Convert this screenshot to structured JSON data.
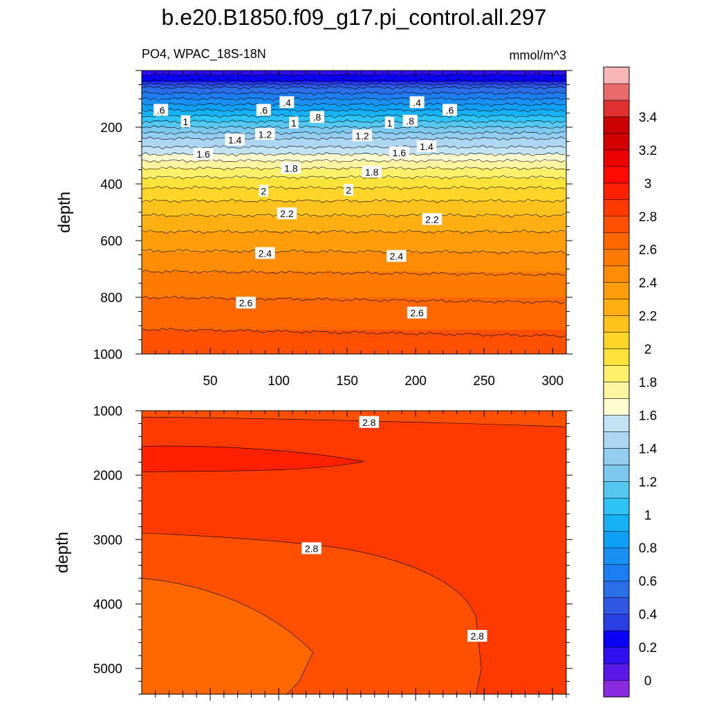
{
  "chart_data": {
    "type": "contour",
    "title": "b.e20.B1850.f09_g17.pi_control.all.297",
    "left_subtitle": "PO4, WPAC_18S-18N",
    "right_subtitle": "mmol/m^3",
    "xlabel": "",
    "ylabel": "depth",
    "colorbar": {
      "levels": [
        0,
        0.1,
        0.2,
        0.3,
        0.4,
        0.5,
        0.6,
        0.7,
        0.8,
        0.9,
        1.0,
        1.1,
        1.2,
        1.3,
        1.4,
        1.5,
        1.6,
        1.7,
        1.8,
        1.9,
        2.0,
        2.1,
        2.2,
        2.3,
        2.4,
        2.5,
        2.6,
        2.7,
        2.8,
        2.9,
        3.0,
        3.1,
        3.2,
        3.3,
        3.4,
        3.5
      ],
      "tick_labels": [
        "0",
        "0.2",
        "0.4",
        "0.6",
        "0.8",
        "1",
        "1.2",
        "1.4",
        "1.6",
        "1.8",
        "2",
        "2.2",
        "2.4",
        "2.6",
        "2.8",
        "3",
        "3.2",
        "3.4"
      ],
      "colors": [
        "#8a2be2",
        "#5a19e8",
        "#3010f0",
        "#0a00f5",
        "#2b3ee3",
        "#2f57e4",
        "#2a6ee8",
        "#1c7ef0",
        "#1a90f5",
        "#0ea0f6",
        "#14b2f4",
        "#2dc3f5",
        "#55c8f2",
        "#7dc8ef",
        "#95cdf0",
        "#acd6f1",
        "#c2e3f3",
        "#fffdd0",
        "#fff5a0",
        "#fff06b",
        "#ffe33a",
        "#ffd52a",
        "#ffc21c",
        "#ffaf12",
        "#ff9d0a",
        "#ff8c04",
        "#ff7a00",
        "#ff6800",
        "#ff5000",
        "#ff3a00",
        "#ff2000",
        "#ff0a00",
        "#ee0000",
        "#d40000",
        "#cc0000",
        "#e03030",
        "#e86a6a",
        "#f9b6b6"
      ]
    },
    "panels": [
      {
        "name": "upper",
        "xlim": [
          0,
          310
        ],
        "ylim": [
          1000,
          0
        ],
        "xticks": [
          50,
          100,
          150,
          200,
          250,
          300
        ],
        "yticks": [
          200,
          400,
          600,
          800,
          1000
        ],
        "profile": {
          "depth": [
            0,
            30,
            60,
            90,
            120,
            150,
            180,
            210,
            240,
            270,
            300,
            330,
            360,
            400,
            450,
            500,
            550,
            600,
            650,
            700,
            750,
            800,
            850,
            900,
            950,
            1000
          ],
          "po4": [
            0.15,
            0.25,
            0.5,
            0.65,
            0.8,
            0.95,
            1.1,
            1.25,
            1.4,
            1.5,
            1.62,
            1.75,
            1.85,
            1.97,
            2.08,
            2.18,
            2.27,
            2.35,
            2.42,
            2.49,
            2.55,
            2.6,
            2.65,
            2.69,
            2.73,
            2.76
          ]
        },
        "contour_labels": [
          {
            "text": ".6",
            "x": 14,
            "d": 140
          },
          {
            "text": ".6",
            "x": 89,
            "d": 140
          },
          {
            "text": ".4",
            "x": 106,
            "d": 113
          },
          {
            "text": ".4",
            "x": 201,
            "d": 113
          },
          {
            "text": ".6",
            "x": 225,
            "d": 140
          },
          {
            "text": "1",
            "x": 32,
            "d": 180
          },
          {
            "text": "1.4",
            "x": 68,
            "d": 245
          },
          {
            "text": "1.2",
            "x": 90,
            "d": 225
          },
          {
            "text": "1",
            "x": 111,
            "d": 185
          },
          {
            "text": ".8",
            "x": 128,
            "d": 165
          },
          {
            "text": "1.2",
            "x": 161,
            "d": 230
          },
          {
            "text": "1",
            "x": 181,
            "d": 185
          },
          {
            "text": ".8",
            "x": 196,
            "d": 178
          },
          {
            "text": "1.4",
            "x": 208,
            "d": 268
          },
          {
            "text": "1.6",
            "x": 45,
            "d": 295
          },
          {
            "text": "1.6",
            "x": 188,
            "d": 290
          },
          {
            "text": "1.8",
            "x": 109,
            "d": 345
          },
          {
            "text": "1.8",
            "x": 168,
            "d": 358
          },
          {
            "text": "2",
            "x": 89,
            "d": 425
          },
          {
            "text": "2",
            "x": 151,
            "d": 422
          },
          {
            "text": "2.2",
            "x": 106,
            "d": 505
          },
          {
            "text": "2.2",
            "x": 212,
            "d": 525
          },
          {
            "text": "2.4",
            "x": 90,
            "d": 645
          },
          {
            "text": "2.4",
            "x": 186,
            "d": 655
          },
          {
            "text": "2.6",
            "x": 76,
            "d": 820
          },
          {
            "text": "2.6",
            "x": 201,
            "d": 855
          }
        ]
      },
      {
        "name": "lower",
        "xlim": [
          0,
          310
        ],
        "ylim": [
          5400,
          1000
        ],
        "yticks": [
          1000,
          2000,
          3000,
          4000,
          5000
        ],
        "regions": [
          {
            "name": "deep-background",
            "po4_range": [
              2.8,
              2.9
            ]
          },
          {
            "name": "max-tongue",
            "po4_range": [
              2.9,
              3.0
            ],
            "depth_range": [
              1550,
              1950
            ],
            "x_range": [
              0,
              162
            ]
          },
          {
            "name": "top-band",
            "po4_range": [
              2.7,
              2.8
            ],
            "depth_range": [
              1000,
              1250
            ]
          },
          {
            "name": "bottom-bowl",
            "po4_range": [
              2.7,
              2.8
            ]
          },
          {
            "name": "bottom-core",
            "po4_range": [
              2.6,
              2.7
            ],
            "depth_range": [
              3600,
              5400
            ],
            "x_range": [
              0,
              125
            ]
          }
        ],
        "contour_labels": [
          {
            "text": "2.8",
            "x": 166,
            "d": 1180
          },
          {
            "text": "2.8",
            "x": 124,
            "d": 3140
          },
          {
            "text": "2.8",
            "x": 245,
            "d": 4500
          }
        ]
      }
    ]
  }
}
